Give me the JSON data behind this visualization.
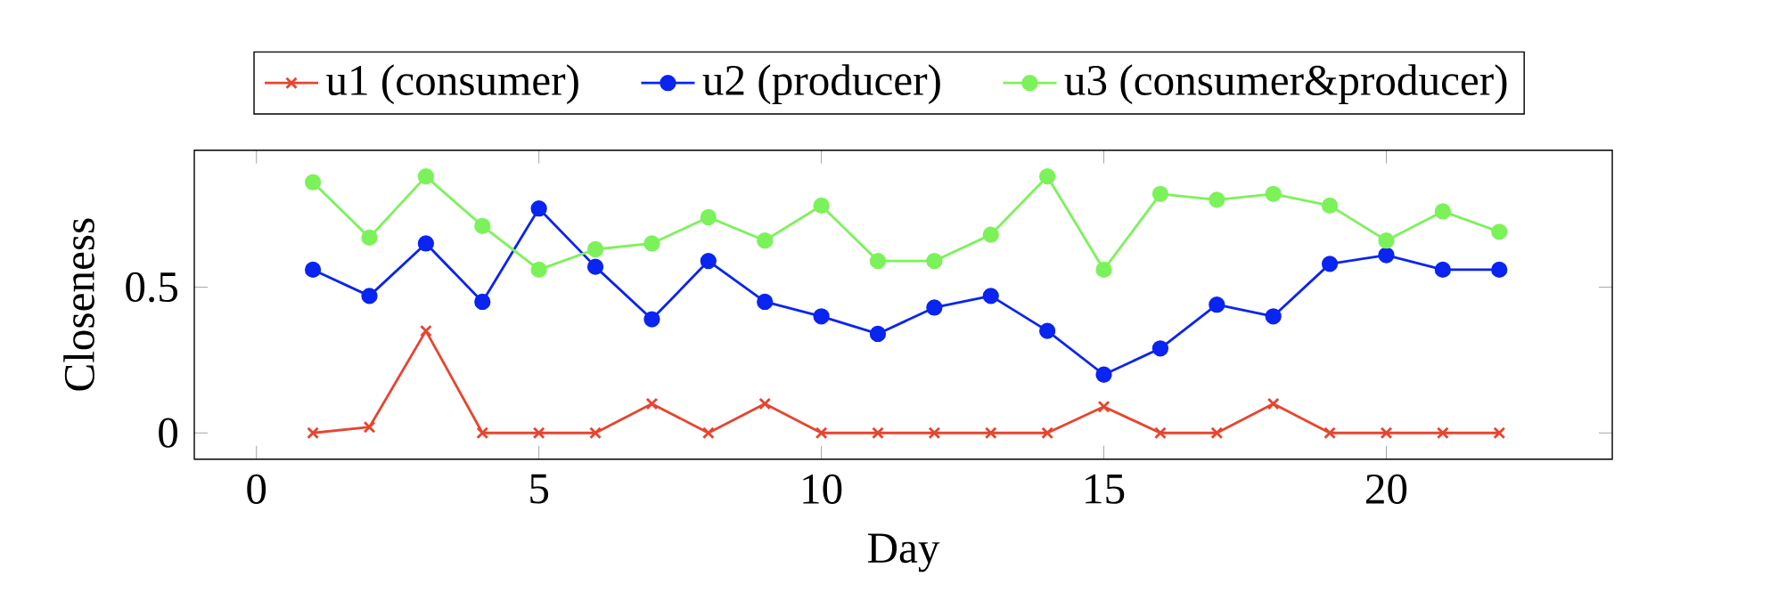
{
  "chart_data": {
    "type": "line",
    "xlabel": "Day",
    "ylabel": "Closeness",
    "x": [
      1,
      2,
      3,
      4,
      5,
      6,
      7,
      8,
      9,
      10,
      11,
      12,
      13,
      14,
      15,
      16,
      17,
      18,
      19,
      20,
      21,
      22
    ],
    "series": [
      {
        "name": "u1 (consumer)",
        "color": "#e8442f",
        "marker": "cross",
        "values": [
          0,
          0.02,
          0.35,
          0,
          0,
          0,
          0.1,
          0,
          0.1,
          0,
          0,
          0,
          0,
          0,
          0.09,
          0,
          0,
          0.1,
          0,
          0,
          0,
          0
        ]
      },
      {
        "name": "u2 (producer)",
        "color": "#0a24f2",
        "marker": "circle",
        "values": [
          0.56,
          0.47,
          0.65,
          0.45,
          0.77,
          0.57,
          0.39,
          0.59,
          0.45,
          0.4,
          0.34,
          0.43,
          0.47,
          0.35,
          0.2,
          0.29,
          0.44,
          0.4,
          0.58,
          0.61,
          0.56,
          0.56
        ]
      },
      {
        "name": "u3 (consumer&producer)",
        "color": "#7cf25a",
        "marker": "circle",
        "values": [
          0.86,
          0.67,
          0.88,
          0.71,
          0.56,
          0.63,
          0.65,
          0.74,
          0.66,
          0.78,
          0.59,
          0.59,
          0.68,
          0.88,
          0.56,
          0.82,
          0.8,
          0.82,
          0.78,
          0.66,
          0.76,
          0.69
        ]
      }
    ],
    "xlim": [
      -1.1,
      24
    ],
    "ylim": [
      -0.09,
      0.97
    ],
    "xticks": [
      0,
      5,
      10,
      15,
      20
    ],
    "yticks": [
      0,
      0.5
    ],
    "legend": "top"
  }
}
